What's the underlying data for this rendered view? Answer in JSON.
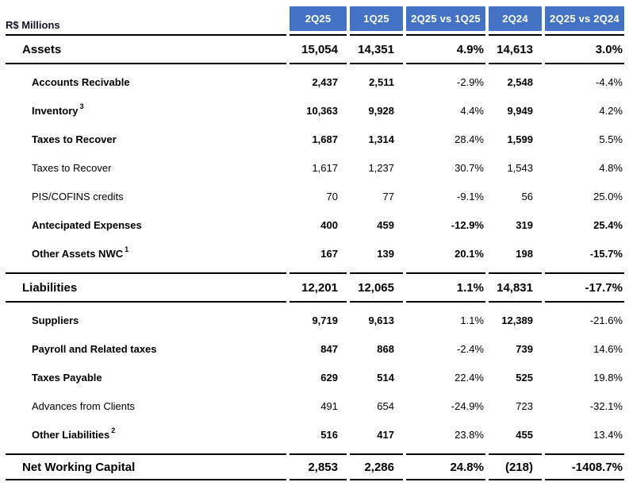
{
  "unit_label": "R$ Millions",
  "colors": {
    "header_bg": "#4472C4",
    "header_text": "#FFFFFF",
    "rule": "#000000",
    "text": "#000000"
  },
  "columns": [
    {
      "key": "2q25",
      "label": "2Q25",
      "type": "value"
    },
    {
      "key": "1q25",
      "label": "1Q25",
      "type": "value"
    },
    {
      "key": "2q25-vs-1q25",
      "label": "2Q25 vs 1Q25",
      "type": "pct"
    },
    {
      "key": "2q24",
      "label": "2Q24",
      "type": "value"
    },
    {
      "key": "2q25-vs-2q24",
      "label": "2Q25 vs 2Q24",
      "type": "pct"
    }
  ],
  "rows": [
    {
      "label": "Assets",
      "sup": "",
      "section": true,
      "bold_label": true,
      "bold_values": true,
      "bold_pcts": true,
      "values": [
        "15,054",
        "14,351",
        "4.9%",
        "14,613",
        "3.0%"
      ]
    },
    {
      "label": "Accounts Recivable",
      "sup": "",
      "section": false,
      "bold_label": true,
      "bold_values": true,
      "bold_pcts": false,
      "values": [
        "2,437",
        "2,511",
        "-2.9%",
        "2,548",
        "-4.4%"
      ]
    },
    {
      "label": "Inventory",
      "sup": "3",
      "section": false,
      "bold_label": true,
      "bold_values": true,
      "bold_pcts": false,
      "values": [
        "10,363",
        "9,928",
        "4.4%",
        "9,949",
        "4.2%"
      ]
    },
    {
      "label": "Taxes to Recover",
      "sup": "",
      "section": false,
      "bold_label": true,
      "bold_values": true,
      "bold_pcts": false,
      "values": [
        "1,687",
        "1,314",
        "28.4%",
        "1,599",
        "5.5%"
      ]
    },
    {
      "label": "Taxes to Recover",
      "sup": "",
      "section": false,
      "bold_label": false,
      "bold_values": false,
      "bold_pcts": false,
      "values": [
        "1,617",
        "1,237",
        "30.7%",
        "1,543",
        "4.8%"
      ]
    },
    {
      "label": "PIS/COFINS credits",
      "sup": "",
      "section": false,
      "bold_label": false,
      "bold_values": false,
      "bold_pcts": false,
      "values": [
        "70",
        "77",
        "-9.1%",
        "56",
        "25.0%"
      ]
    },
    {
      "label": "Antecipated Expenses",
      "sup": "",
      "section": false,
      "bold_label": true,
      "bold_values": true,
      "bold_pcts": true,
      "values": [
        "400",
        "459",
        "-12.9%",
        "319",
        "25.4%"
      ]
    },
    {
      "label": "Other Assets NWC",
      "sup": "1",
      "section": false,
      "bold_label": true,
      "bold_values": true,
      "bold_pcts": true,
      "values": [
        "167",
        "139",
        "20.1%",
        "198",
        "-15.7%"
      ]
    },
    {
      "label": "Liabilities",
      "sup": "",
      "section": true,
      "bold_label": true,
      "bold_values": true,
      "bold_pcts": true,
      "values": [
        "12,201",
        "12,065",
        "1.1%",
        "14,831",
        "-17.7%"
      ]
    },
    {
      "label": "Suppliers",
      "sup": "",
      "section": false,
      "bold_label": true,
      "bold_values": true,
      "bold_pcts": false,
      "values": [
        "9,719",
        "9,613",
        "1.1%",
        "12,389",
        "-21.6%"
      ]
    },
    {
      "label": "Payroll and Related taxes",
      "sup": "",
      "section": false,
      "bold_label": true,
      "bold_values": true,
      "bold_pcts": false,
      "values": [
        "847",
        "868",
        "-2.4%",
        "739",
        "14.6%"
      ]
    },
    {
      "label": "Taxes Payable",
      "sup": "",
      "section": false,
      "bold_label": true,
      "bold_values": true,
      "bold_pcts": false,
      "values": [
        "629",
        "514",
        "22.4%",
        "525",
        "19.8%"
      ]
    },
    {
      "label": "Advances from Clients",
      "sup": "",
      "section": false,
      "bold_label": false,
      "bold_values": false,
      "bold_pcts": false,
      "values": [
        "491",
        "654",
        "-24.9%",
        "723",
        "-32.1%"
      ]
    },
    {
      "label": "Other Liabilities",
      "sup": "2",
      "section": false,
      "bold_label": true,
      "bold_values": true,
      "bold_pcts": false,
      "values": [
        "516",
        "417",
        "23.8%",
        "455",
        "13.4%"
      ]
    },
    {
      "label": "Net Working Capital",
      "sup": "",
      "section": true,
      "bold_label": true,
      "bold_values": true,
      "bold_pcts": true,
      "values": [
        "2,853",
        "2,286",
        "24.8%",
        "(218)",
        "-1408.7%"
      ]
    }
  ]
}
